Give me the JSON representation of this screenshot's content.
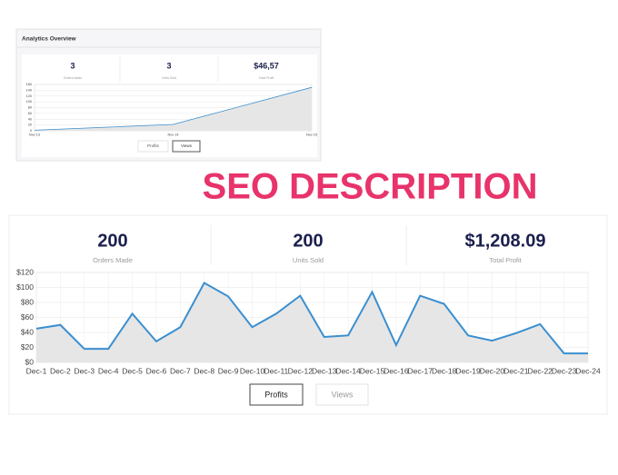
{
  "small_panel": {
    "title": "Analytics Overview",
    "stats": [
      {
        "value": "3",
        "label": "Orders Made"
      },
      {
        "value": "3",
        "label": "Units Sold"
      },
      {
        "value": "$46,57",
        "label": "Total Profit"
      }
    ],
    "buttons": [
      "Profits",
      "Views"
    ]
  },
  "heading": "SEO DESCRIPTION",
  "large_panel": {
    "stats": [
      {
        "value": "200",
        "label": "Orders Made"
      },
      {
        "value": "200",
        "label": "Units Sold"
      },
      {
        "value": "$1,208.09",
        "label": "Total Profit"
      }
    ],
    "buttons": [
      "Profits",
      "Views"
    ]
  },
  "chart_data": [
    {
      "type": "line",
      "categories": [
        "Nov 13",
        "Nov 14",
        "Nov 15"
      ],
      "values": [
        2,
        22,
        150
      ],
      "color": "#3a8fd0",
      "area_color": "#e6e6e6",
      "ylim": [
        0,
        160
      ],
      "yticks": [
        0,
        20,
        40,
        60,
        80,
        100,
        120,
        140,
        160
      ],
      "grid": true
    },
    {
      "type": "line",
      "categories": [
        "Dec-1",
        "Dec-2",
        "Dec-3",
        "Dec-4",
        "Dec-5",
        "Dec-6",
        "Dec-7",
        "Dec-8",
        "Dec-9",
        "Dec-10",
        "Dec-11",
        "Dec-12",
        "Dec-13",
        "Dec-14",
        "Dec-15",
        "Dec-16",
        "Dec-17",
        "Dec-18",
        "Dec-19",
        "Dec-20",
        "Dec-21",
        "Dec-22",
        "Dec-23",
        "Dec-24"
      ],
      "values": [
        45,
        50,
        18,
        18,
        65,
        28,
        47,
        106,
        88,
        47,
        65,
        89,
        34,
        36,
        94,
        23,
        89,
        78,
        36,
        29,
        39,
        51,
        12,
        12
      ],
      "color": "#3a8fd0",
      "area_color": "#e6e6e6",
      "ylim": [
        0,
        120
      ],
      "yticks": [
        {
          "value": 0,
          "label": "$0"
        },
        {
          "value": 20,
          "label": "$20"
        },
        {
          "value": 40,
          "label": "$40"
        },
        {
          "value": 60,
          "label": "$60"
        },
        {
          "value": 80,
          "label": "$80"
        },
        {
          "value": 100,
          "label": "$100"
        },
        {
          "value": 120,
          "label": "$120"
        }
      ],
      "grid": true
    }
  ]
}
